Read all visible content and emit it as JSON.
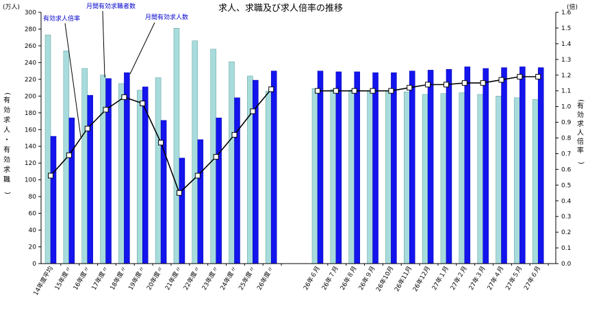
{
  "chart_data": {
    "type": "bar",
    "title": "求人、求職及び求人倍率の推移",
    "left_unit": "(万人)",
    "right_unit": "(倍)",
    "ylabel_left": "(有効求人・有効求職)",
    "ylabel_right": "(有効求人倍率)",
    "ylim_left": [
      0,
      300
    ],
    "ylim_right": [
      0,
      1.6
    ],
    "y_ticks_left": [
      "0",
      "20",
      "40",
      "60",
      "80",
      "100",
      "120",
      "140",
      "160",
      "180",
      "200",
      "220",
      "240",
      "260",
      "280",
      "300"
    ],
    "y_ticks_right": [
      "0.0",
      "0.1",
      "0.2",
      "0.3",
      "0.4",
      "0.5",
      "0.6",
      "0.7",
      "0.8",
      "0.9",
      "1.0",
      "1.1",
      "1.2",
      "1.3",
      "1.4",
      "1.5",
      "1.6"
    ],
    "grid": false,
    "annotations": [
      "有効求人倍率",
      "月間有効求職者数",
      "月間有効求人数"
    ],
    "groups": [
      {
        "categories": [
          "14年度平均",
          "15年度〃",
          "16年度〃",
          "17年度〃",
          "18年度〃",
          "19年度〃",
          "20年度〃",
          "21年度〃",
          "22年度〃",
          "23年度〃",
          "24年度〃",
          "25年度〃",
          "26年度〃"
        ],
        "series": [
          {
            "name": "月間有効求職者数",
            "axis": "left",
            "values": [
              273,
              254,
              233,
              225,
              215,
              207,
              222,
              281,
              266,
              256,
              241,
              224,
              206
            ]
          },
          {
            "name": "月間有効求人数",
            "axis": "left",
            "values": [
              152,
              174,
              201,
              221,
              228,
              211,
              171,
              126,
              148,
              174,
              198,
              219,
              230
            ]
          },
          {
            "name": "有効求人倍率",
            "axis": "right",
            "values": [
              0.56,
              0.69,
              0.86,
              0.98,
              1.06,
              1.02,
              0.77,
              0.45,
              0.56,
              0.68,
              0.82,
              0.97,
              1.11
            ]
          }
        ]
      },
      {
        "categories": [
          "26年６月",
          "26年７月",
          "26年８月",
          "26年９月",
          "26年10月",
          "26年11月",
          "26年12月",
          "27年１月",
          "27年２月",
          "27年３月",
          "27年４月",
          "27年５月",
          "27年６月"
        ],
        "series": [
          {
            "name": "月間有効求職者数",
            "axis": "left",
            "values": [
              209,
              208,
              207,
              206,
              206,
              205,
              202,
              203,
              204,
              202,
              200,
              198,
              196
            ]
          },
          {
            "name": "月間有効求人数",
            "axis": "left",
            "values": [
              230,
              229,
              229,
              228,
              228,
              230,
              231,
              232,
              235,
              233,
              234,
              235,
              234
            ]
          },
          {
            "name": "有効求人倍率",
            "axis": "right",
            "values": [
              1.1,
              1.1,
              1.1,
              1.1,
              1.1,
              1.12,
              1.14,
              1.14,
              1.15,
              1.15,
              1.17,
              1.19,
              1.19
            ]
          }
        ]
      }
    ],
    "colors": {
      "job_seekers": "#a8dcdc",
      "job_offers": "#1414ee",
      "ratio_line": "#000000",
      "marker_fill": "#ffffff"
    }
  }
}
